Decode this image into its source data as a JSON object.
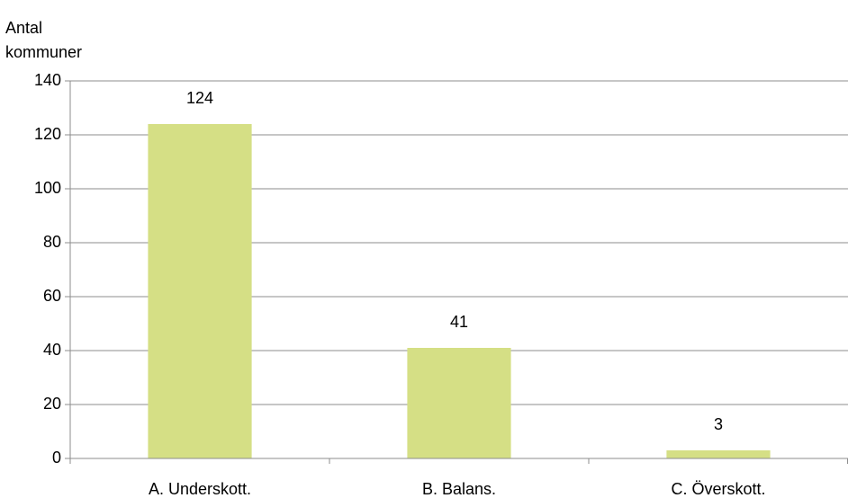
{
  "chart_data": {
    "type": "bar",
    "ylabel": "Antal kommuner",
    "categories": [
      "A. Underskott.",
      "B. Balans.",
      "C. Överskott."
    ],
    "values": [
      124,
      41,
      3
    ],
    "color": "#d5df85",
    "ylim": [
      0,
      140
    ],
    "yticks": [
      0,
      20,
      40,
      60,
      80,
      100,
      120,
      140
    ],
    "grid": true
  }
}
